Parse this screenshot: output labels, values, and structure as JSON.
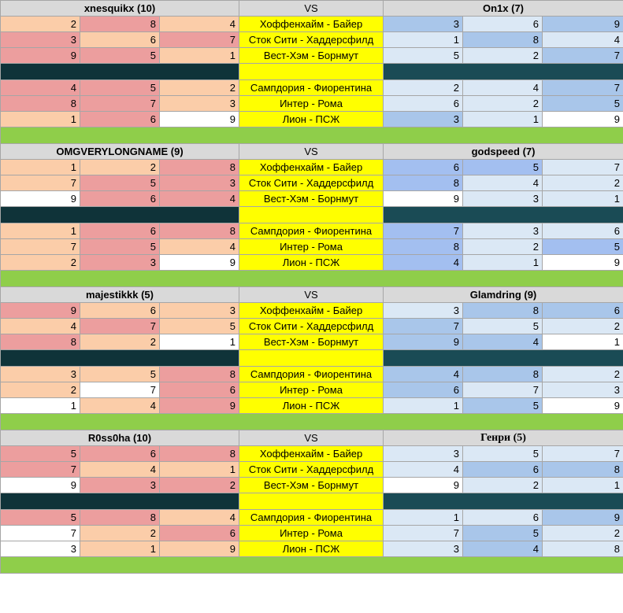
{
  "sheet": {
    "vs_label": "VS",
    "colors": {
      "lw": "#ffffff",
      "lp": "#fbcda9",
      "lr": "#ec9e9e",
      "rw": "#ffffff",
      "rl": "#dbe8f5",
      "rm": "#a9c6ea",
      "rd": "#a3bff0",
      "divider": "#0f3339",
      "divider_right": "#1a4b55",
      "spacer": "#8fce4a",
      "match": "#ffff00",
      "header": "#d9d9d9"
    },
    "blocks": [
      {
        "left_player": "xnesquikx (10)",
        "right_player": "On1x (7)",
        "rows": [
          {
            "match": "Хоффенхайм - Байер",
            "left": [
              2,
              8,
              4
            ],
            "lc": [
              "lp",
              "lr",
              "lp"
            ],
            "right": [
              3,
              6,
              9
            ],
            "rc": [
              "rm",
              "rl",
              "rm"
            ]
          },
          {
            "match": "Сток Сити - Хаддерсфилд",
            "left": [
              3,
              6,
              7
            ],
            "lc": [
              "lr",
              "lp",
              "lr"
            ],
            "right": [
              1,
              8,
              4
            ],
            "rc": [
              "rl",
              "rm",
              "rl"
            ]
          },
          {
            "match": "Вест-Хэм - Борнмут",
            "left": [
              9,
              5,
              1
            ],
            "lc": [
              "lr",
              "lr",
              "lp"
            ],
            "right": [
              5,
              2,
              7
            ],
            "rc": [
              "rl",
              "rl",
              "rm"
            ]
          },
          {
            "match": "Сампдория - Фиорентина",
            "left": [
              4,
              5,
              2
            ],
            "lc": [
              "lr",
              "lr",
              "lp"
            ],
            "right": [
              2,
              4,
              7
            ],
            "rc": [
              "rl",
              "rl",
              "rm"
            ]
          },
          {
            "match": "Интер - Рома",
            "left": [
              8,
              7,
              3
            ],
            "lc": [
              "lr",
              "lr",
              "lp"
            ],
            "right": [
              6,
              2,
              5
            ],
            "rc": [
              "rl",
              "rl",
              "rm"
            ]
          },
          {
            "match": "Лион - ПСЖ",
            "left": [
              1,
              6,
              9
            ],
            "lc": [
              "lp",
              "lr",
              "lw"
            ],
            "right": [
              3,
              1,
              9
            ],
            "rc": [
              "rm",
              "rl",
              "rw"
            ]
          }
        ]
      },
      {
        "left_player": "OMGVERYLONGNAME (9)",
        "right_player": "godspeed (7)",
        "rows": [
          {
            "match": "Хоффенхайм - Байер",
            "left": [
              1,
              2,
              8
            ],
            "lc": [
              "lp",
              "lp",
              "lr"
            ],
            "right": [
              6,
              5,
              7
            ],
            "rc": [
              "rd",
              "rd",
              "rl"
            ]
          },
          {
            "match": "Сток Сити - Хаддерсфилд",
            "left": [
              7,
              5,
              3
            ],
            "lc": [
              "lp",
              "lr",
              "lr"
            ],
            "right": [
              8,
              4,
              2
            ],
            "rc": [
              "rd",
              "rl",
              "rl"
            ]
          },
          {
            "match": "Вест-Хэм - Борнмут",
            "left": [
              9,
              6,
              4
            ],
            "lc": [
              "lw",
              "lr",
              "lr"
            ],
            "right": [
              9,
              3,
              1
            ],
            "rc": [
              "rw",
              "rl",
              "rl"
            ]
          },
          {
            "match": "Сампдория - Фиорентина",
            "left": [
              1,
              6,
              8
            ],
            "lc": [
              "lp",
              "lr",
              "lr"
            ],
            "right": [
              7,
              3,
              6
            ],
            "rc": [
              "rd",
              "rl",
              "rl"
            ]
          },
          {
            "match": "Интер - Рома",
            "left": [
              7,
              5,
              4
            ],
            "lc": [
              "lp",
              "lr",
              "lp"
            ],
            "right": [
              8,
              2,
              5
            ],
            "rc": [
              "rd",
              "rl",
              "rd"
            ]
          },
          {
            "match": "Лион - ПСЖ",
            "left": [
              2,
              3,
              9
            ],
            "lc": [
              "lp",
              "lr",
              "lw"
            ],
            "right": [
              4,
              1,
              9
            ],
            "rc": [
              "rd",
              "rl",
              "rw"
            ]
          }
        ]
      },
      {
        "left_player": "majestikkk (5)",
        "right_player": "Glamdring (9)",
        "rows": [
          {
            "match": "Хоффенхайм - Байер",
            "left": [
              9,
              6,
              3
            ],
            "lc": [
              "lr",
              "lp",
              "lp"
            ],
            "right": [
              3,
              8,
              6
            ],
            "rc": [
              "rl",
              "rm",
              "rm"
            ]
          },
          {
            "match": "Сток Сити - Хаддерсфилд",
            "left": [
              4,
              7,
              5
            ],
            "lc": [
              "lp",
              "lr",
              "lp"
            ],
            "right": [
              7,
              5,
              2
            ],
            "rc": [
              "rm",
              "rl",
              "rl"
            ]
          },
          {
            "match": "Вест-Хэм - Борнмут",
            "left": [
              8,
              2,
              1
            ],
            "lc": [
              "lr",
              "lp",
              "lw"
            ],
            "right": [
              9,
              4,
              1
            ],
            "rc": [
              "rm",
              "rm",
              "rw"
            ]
          },
          {
            "match": "Сампдория - Фиорентина",
            "left": [
              3,
              5,
              8
            ],
            "lc": [
              "lp",
              "lp",
              "lr"
            ],
            "right": [
              4,
              8,
              2
            ],
            "rc": [
              "rm",
              "rm",
              "rl"
            ]
          },
          {
            "match": "Интер - Рома",
            "left": [
              2,
              7,
              6
            ],
            "lc": [
              "lp",
              "lw",
              "lr"
            ],
            "right": [
              6,
              7,
              3
            ],
            "rc": [
              "rm",
              "rl",
              "rl"
            ]
          },
          {
            "match": "Лион - ПСЖ",
            "left": [
              1,
              4,
              9
            ],
            "lc": [
              "lw",
              "lp",
              "lr"
            ],
            "right": [
              1,
              5,
              9
            ],
            "rc": [
              "rl",
              "rm",
              "rw"
            ]
          }
        ]
      },
      {
        "left_player": "R0ss0ha (10)",
        "right_player": "Генри (5)",
        "right_cyr": true,
        "rows": [
          {
            "match": "Хоффенхайм - Байер",
            "left": [
              5,
              6,
              8
            ],
            "lc": [
              "lr",
              "lr",
              "lr"
            ],
            "right": [
              3,
              5,
              7
            ],
            "rc": [
              "rl",
              "rl",
              "rl"
            ]
          },
          {
            "match": "Сток Сити - Хаддерсфилд",
            "left": [
              7,
              4,
              1
            ],
            "lc": [
              "lr",
              "lp",
              "lp"
            ],
            "right": [
              4,
              6,
              8
            ],
            "rc": [
              "rl",
              "rm",
              "rm"
            ]
          },
          {
            "match": "Вест-Хэм - Борнмут",
            "left": [
              9,
              3,
              2
            ],
            "lc": [
              "lw",
              "lr",
              "lr"
            ],
            "right": [
              9,
              2,
              1
            ],
            "rc": [
              "rw",
              "rl",
              "rl"
            ]
          },
          {
            "match": "Сампдория - Фиорентина",
            "left": [
              5,
              8,
              4
            ],
            "lc": [
              "lr",
              "lr",
              "lp"
            ],
            "right": [
              1,
              6,
              9
            ],
            "rc": [
              "rl",
              "rl",
              "rm"
            ]
          },
          {
            "match": "Интер - Рома",
            "left": [
              7,
              2,
              6
            ],
            "lc": [
              "lw",
              "lp",
              "lr"
            ],
            "right": [
              7,
              5,
              2
            ],
            "rc": [
              "rl",
              "rm",
              "rl"
            ]
          },
          {
            "match": "Лион - ПСЖ",
            "left": [
              3,
              1,
              9
            ],
            "lc": [
              "lw",
              "lp",
              "lp"
            ],
            "right": [
              3,
              4,
              8
            ],
            "rc": [
              "rl",
              "rm",
              "rl"
            ]
          }
        ]
      }
    ]
  }
}
